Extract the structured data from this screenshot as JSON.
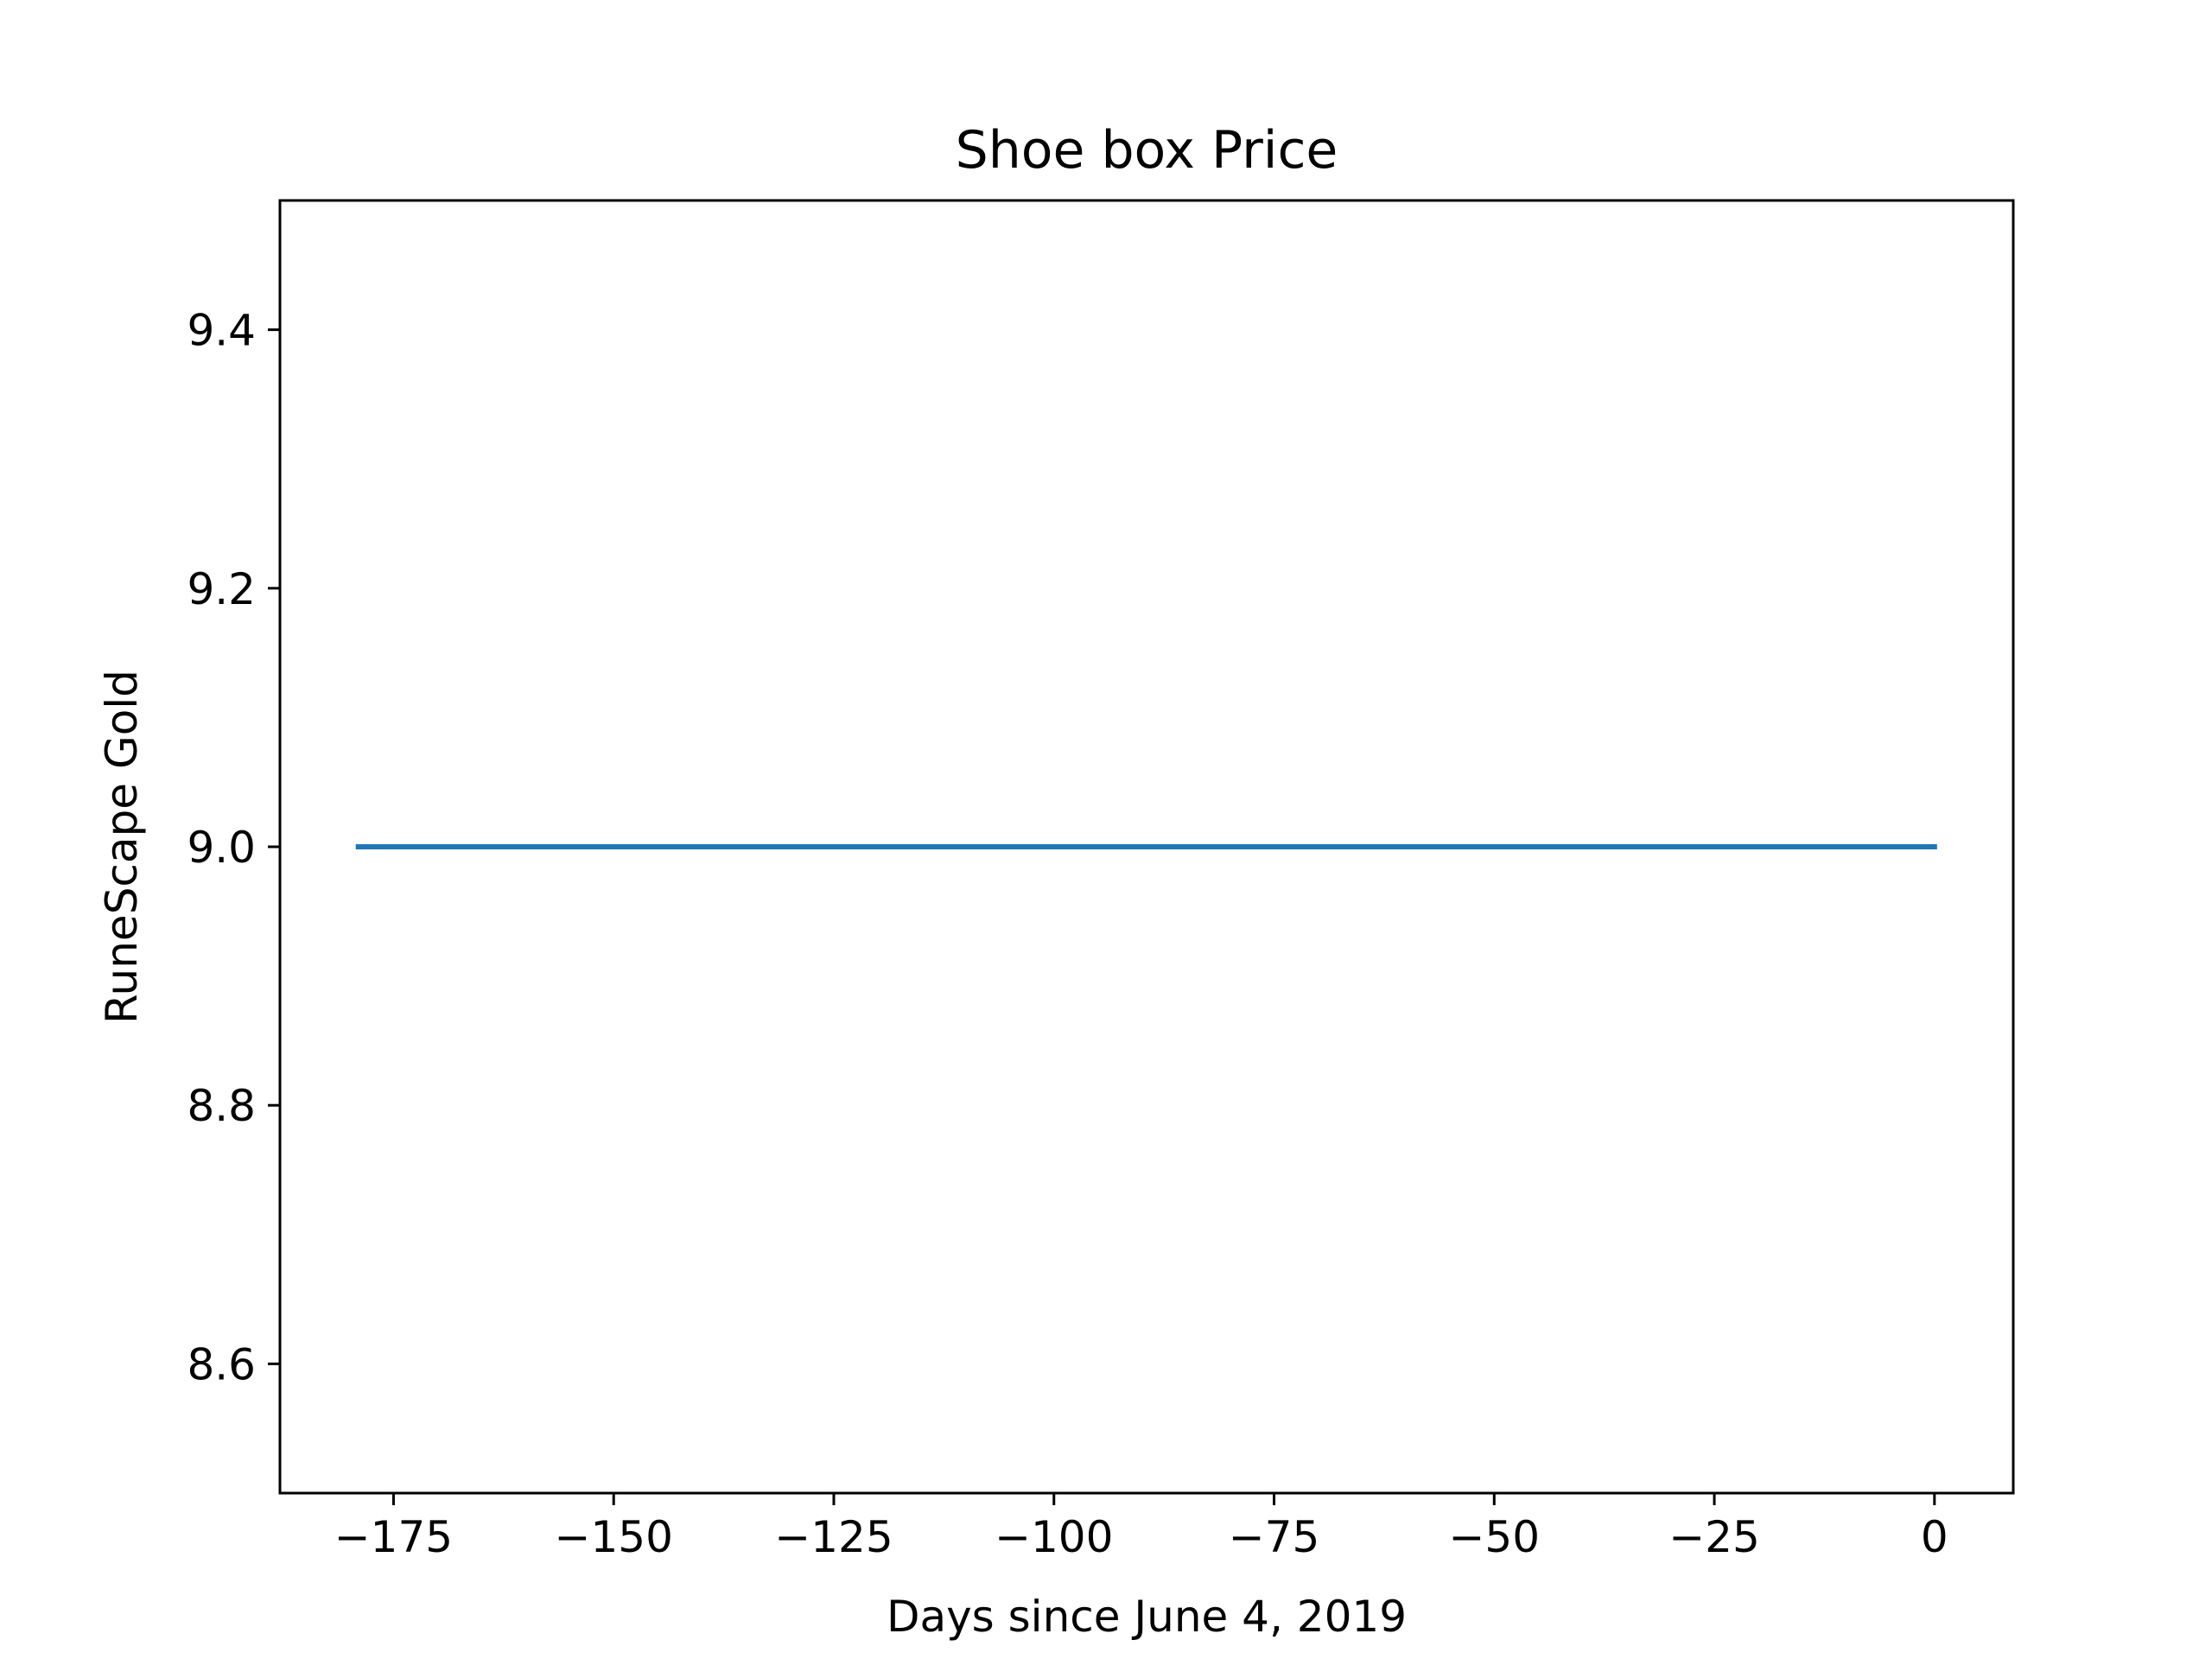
{
  "chart_data": {
    "type": "line",
    "title": "Shoe box Price",
    "xlabel": "Days since June 4, 2019",
    "ylabel": "RuneScape Gold",
    "xlim": [
      -187.9,
      8.95
    ],
    "ylim": [
      8.5,
      9.5
    ],
    "xticks": [
      -175,
      -150,
      -125,
      -100,
      -75,
      -50,
      -25,
      0
    ],
    "xtick_labels": [
      "−175",
      "−150",
      "−125",
      "−100",
      "−75",
      "−50",
      "−25",
      "0"
    ],
    "yticks": [
      8.6,
      8.8,
      9.0,
      9.2,
      9.4
    ],
    "ytick_labels": [
      "8.6",
      "8.8",
      "9.0",
      "9.2",
      "9.4"
    ],
    "grid": false,
    "legend": "none",
    "series": [
      {
        "color": "#1f77b4",
        "x": [
          -179,
          0
        ],
        "y": [
          9.0,
          9.0
        ]
      }
    ]
  }
}
